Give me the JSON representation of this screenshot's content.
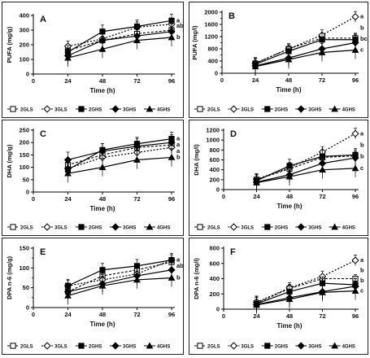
{
  "legend_labels": [
    "2GLS",
    "3GLS",
    "2GHS",
    "3GHS",
    "4GHS"
  ],
  "legend_labels_ab": [
    "2GLS",
    "3GLS",
    "2GHS",
    "3GHS",
    "4GHS"
  ],
  "chart_data": [
    {
      "type": "line",
      "panel": "A",
      "xlabel": "Time (h)",
      "ylabel": "PUFA (mg/g)",
      "x": [
        24,
        48,
        72,
        96
      ],
      "xlim": [
        0,
        96
      ],
      "xticks": [
        0,
        24,
        48,
        72,
        96
      ],
      "ylim": [
        0,
        400
      ],
      "yticks": [
        0,
        100,
        200,
        300,
        400
      ],
      "series": [
        {
          "name": "2GLS",
          "values": [
            160,
            230,
            275,
            300
          ]
        },
        {
          "name": "3GLS",
          "values": [
            190,
            240,
            320,
            340
          ]
        },
        {
          "name": "2GHS",
          "values": [
            150,
            290,
            325,
            365
          ]
        },
        {
          "name": "3GHS",
          "values": [
            125,
            230,
            260,
            290
          ]
        },
        {
          "name": "4GHS",
          "values": [
            110,
            170,
            230,
            250
          ]
        }
      ],
      "letters": [
        "a",
        "ab",
        "",
        "b"
      ]
    },
    {
      "type": "line",
      "panel": "B",
      "xlabel": "Time (h)",
      "ylabel": "PUFA (mg/l)",
      "x": [
        24,
        48,
        72,
        96
      ],
      "xlim": [
        0,
        96
      ],
      "xticks": [
        0,
        24,
        48,
        72,
        96
      ],
      "ylim": [
        0,
        2000
      ],
      "yticks": [
        0,
        400,
        800,
        1200,
        1600,
        2000
      ],
      "ytick_labels": [
        "0",
        "400",
        "800",
        "1200",
        "1600",
        "2000"
      ],
      "minor_yticks": [
        200,
        600,
        1000,
        1400,
        1800
      ],
      "series": [
        {
          "name": "2GLS",
          "values": [
            320,
            800,
            1150,
            1150
          ]
        },
        {
          "name": "3GLS",
          "values": [
            330,
            800,
            1250,
            1850
          ]
        },
        {
          "name": "2GHS",
          "values": [
            290,
            720,
            1100,
            1100
          ]
        },
        {
          "name": "3GHS",
          "values": [
            240,
            500,
            800,
            1000
          ]
        },
        {
          "name": "4GHS",
          "values": [
            220,
            450,
            680,
            760
          ]
        }
      ],
      "letters": [
        "a",
        "b",
        "bc",
        "c"
      ]
    },
    {
      "type": "line",
      "panel": "C",
      "xlabel": "Time (h)",
      "ylabel": "DHA (mg/g)",
      "x": [
        24,
        48,
        72,
        96
      ],
      "xlim": [
        0,
        96
      ],
      "xticks": [
        0,
        24,
        48,
        72,
        96
      ],
      "ylim": [
        0,
        250
      ],
      "yticks": [
        0,
        50,
        100,
        150,
        200,
        250
      ],
      "series": [
        {
          "name": "2GLS",
          "values": [
            110,
            150,
            180,
            190
          ]
        },
        {
          "name": "3GLS",
          "values": [
            95,
            140,
            160,
            180
          ]
        },
        {
          "name": "2GHS",
          "values": [
            90,
            170,
            195,
            215
          ]
        },
        {
          "name": "3GHS",
          "values": [
            130,
            165,
            185,
            200
          ]
        },
        {
          "name": "4GHS",
          "values": [
            75,
            100,
            130,
            140
          ]
        }
      ],
      "letters": [
        "a",
        "a",
        "a",
        "b"
      ]
    },
    {
      "type": "line",
      "panel": "D",
      "xlabel": "Time (h)",
      "ylabel": "DHA (mg/l)",
      "x": [
        24,
        48,
        72,
        96
      ],
      "xlim": [
        0,
        96
      ],
      "xticks": [
        0,
        24,
        48,
        72,
        96
      ],
      "ylim": [
        0,
        1200
      ],
      "yticks": [
        0,
        200,
        400,
        600,
        800,
        1000,
        1200
      ],
      "series": [
        {
          "name": "2GLS",
          "values": [
            200,
            420,
            650,
            680
          ]
        },
        {
          "name": "3GLS",
          "values": [
            210,
            440,
            760,
            1130
          ]
        },
        {
          "name": "2GHS",
          "values": [
            180,
            480,
            670,
            700
          ]
        },
        {
          "name": "3GHS",
          "values": [
            150,
            300,
            530,
            640
          ]
        },
        {
          "name": "4GHS",
          "values": [
            140,
            260,
            400,
            430
          ]
        }
      ],
      "letters": [
        "a",
        "b",
        "b",
        "c"
      ]
    },
    {
      "type": "line",
      "panel": "E",
      "xlabel": "Time (h)",
      "ylabel": "DPA n-6 (mg/g)",
      "x": [
        24,
        48,
        72,
        96
      ],
      "xlim": [
        0,
        96
      ],
      "xticks": [
        0,
        24,
        48,
        72,
        96
      ],
      "ylim": [
        0,
        150
      ],
      "yticks": [
        0,
        50,
        100,
        150
      ],
      "minor_yticks": [
        25,
        75,
        125
      ],
      "series": [
        {
          "name": "2GLS",
          "values": [
            40,
            80,
            95,
            115
          ]
        },
        {
          "name": "3GLS",
          "values": [
            55,
            70,
            85,
            120
          ]
        },
        {
          "name": "2GHS",
          "values": [
            55,
            95,
            105,
            120
          ]
        },
        {
          "name": "3GHS",
          "values": [
            40,
            60,
            80,
            95
          ]
        },
        {
          "name": "4GHS",
          "values": [
            30,
            55,
            70,
            75
          ]
        }
      ],
      "letters": [
        "a",
        "ab",
        "",
        "b"
      ]
    },
    {
      "type": "line",
      "panel": "F",
      "xlabel": "Time (h)",
      "ylabel": "DPA n-6 (mg/l)",
      "x": [
        24,
        48,
        72,
        96
      ],
      "xlim": [
        0,
        96
      ],
      "xticks": [
        0,
        24,
        48,
        72,
        96
      ],
      "ylim": [
        0,
        800
      ],
      "yticks": [
        0,
        200,
        400,
        600,
        800
      ],
      "series": [
        {
          "name": "2GLS",
          "values": [
            80,
            270,
            400,
            400
          ]
        },
        {
          "name": "3GLS",
          "values": [
            90,
            280,
            430,
            640
          ]
        },
        {
          "name": "2GHS",
          "values": [
            70,
            230,
            340,
            320
          ]
        },
        {
          "name": "3GHS",
          "values": [
            60,
            150,
            230,
            300
          ]
        },
        {
          "name": "4GHS",
          "values": [
            55,
            130,
            220,
            240
          ]
        }
      ],
      "letters": [
        "a",
        "b",
        "b",
        "c"
      ]
    }
  ]
}
